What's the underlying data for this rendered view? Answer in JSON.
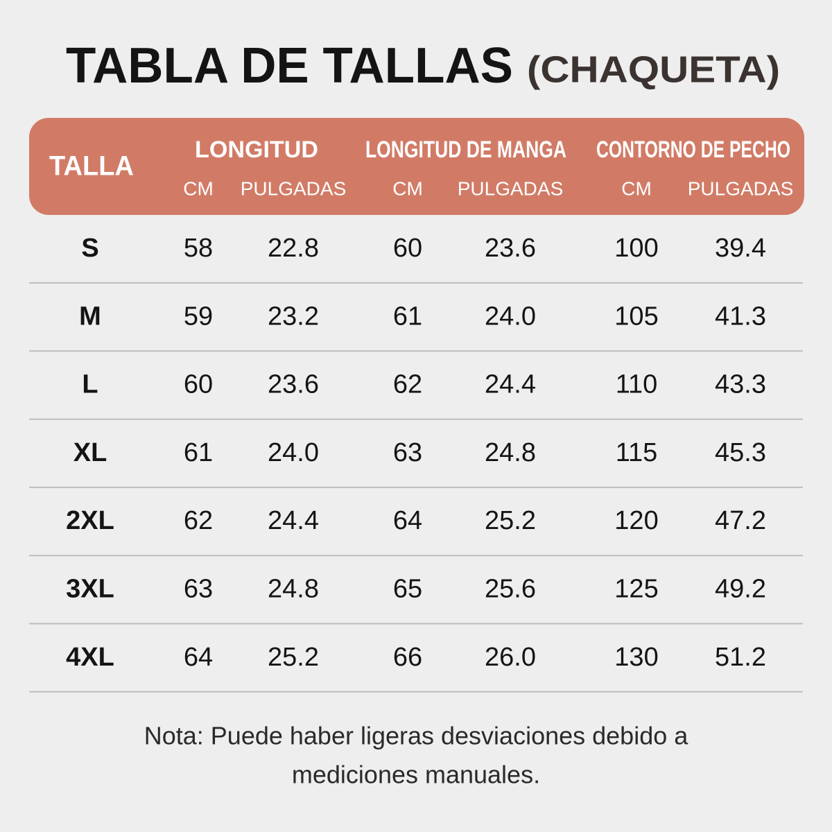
{
  "header": {
    "title": "TABLA DE TALLAS",
    "subtitle": "(CHAQUETA)"
  },
  "table": {
    "size_header": "TALLA",
    "groups": [
      "LONGITUD",
      "LONGITUD DE MANGA",
      "CONTORNO DE PECHO"
    ],
    "units": [
      "CM",
      "PULGADAS",
      "CM",
      "PULGADAS",
      "CM",
      "PULGADAS"
    ],
    "rows": [
      [
        "S",
        "58",
        "22.8",
        "60",
        "23.6",
        "100",
        "39.4"
      ],
      [
        "M",
        "59",
        "23.2",
        "61",
        "24.0",
        "105",
        "41.3"
      ],
      [
        "L",
        "60",
        "23.6",
        "62",
        "24.4",
        "110",
        "43.3"
      ],
      [
        "XL",
        "61",
        "24.0",
        "63",
        "24.8",
        "115",
        "45.3"
      ],
      [
        "2XL",
        "62",
        "24.4",
        "64",
        "25.2",
        "120",
        "47.2"
      ],
      [
        "3XL",
        "63",
        "24.8",
        "65",
        "25.6",
        "125",
        "49.2"
      ],
      [
        "4XL",
        "64",
        "25.2",
        "66",
        "26.0",
        "130",
        "51.2"
      ]
    ]
  },
  "note": [
    "Nota: Puede haber ligeras desviaciones debido a",
    "mediciones manuales."
  ]
}
